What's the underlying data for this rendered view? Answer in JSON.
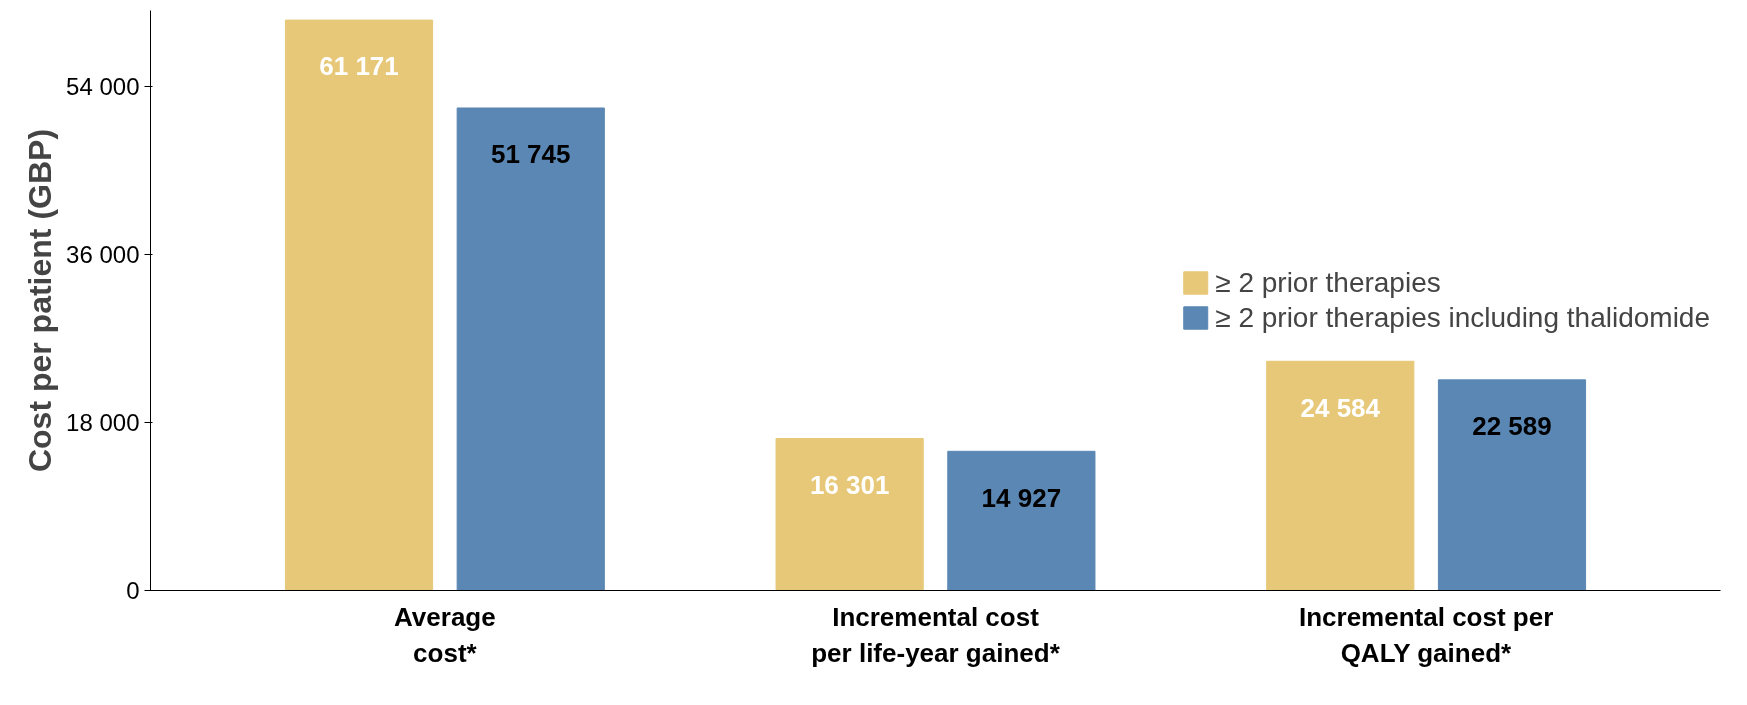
{
  "chart_data": {
    "type": "bar",
    "ylabel": "Cost per patient (GBP)",
    "categories": [
      "Average\ncost*",
      "Incremental cost\nper life-year gained*",
      "Incremental cost per\nQALY gained*"
    ],
    "series": [
      {
        "name": "≥ 2 prior therapies",
        "color": "#e6c878",
        "values": [
          61171,
          16301,
          24584
        ],
        "value_labels": [
          "61 171",
          "16 301",
          "24 584"
        ]
      },
      {
        "name": "≥ 2 prior therapies including thalidomide",
        "color": "#5a87b4",
        "values": [
          51745,
          14927,
          22589
        ],
        "value_labels": [
          "51 745",
          "14 927",
          "22 589"
        ]
      }
    ],
    "ylim": [
      0,
      62200
    ],
    "yticks": [
      0,
      {
        "value": 18000,
        "label": "18 000"
      },
      {
        "value": 36000,
        "label": "36 000"
      },
      {
        "value": 54000,
        "label": "54 000"
      }
    ],
    "grid": false,
    "legend": "right"
  }
}
